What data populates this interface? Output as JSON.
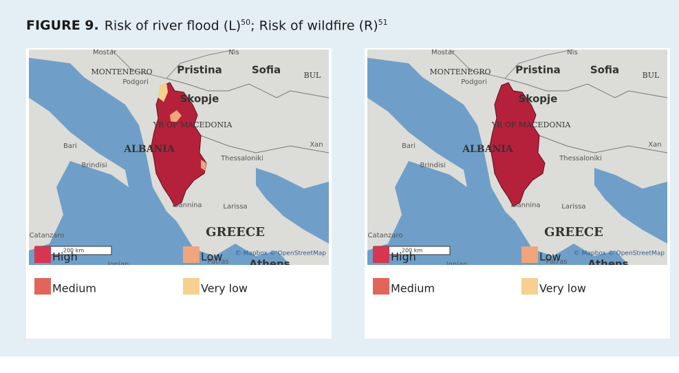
{
  "figure": {
    "label": "FIGURE 9.",
    "title": "Risk of river flood (L)",
    "title_ref": "50",
    "title_2": "; Risk of wildfire (R)",
    "title_2_ref": "51"
  },
  "panels": [
    {
      "map_labels": [
        "Mostar",
        "Nis",
        "MONTENEGRO",
        "Pristina",
        "Sofia",
        "BUL",
        "Podgori",
        "Skopje",
        "YR OF MACEDONIA",
        "Bari",
        "ALBANIA",
        "Brindisi",
        "Xan",
        "Thessaloniki",
        "Ioannina",
        "Larissa",
        "GREECE",
        "Catanzaro",
        "Patras",
        "Athens",
        "Ionian"
      ],
      "scale": "200 km",
      "attribution": "© Mapbox © OpenStreetMap",
      "legend": [
        {
          "label": "High",
          "color": "#d6364f"
        },
        {
          "label": "Medium",
          "color": "#e2655a"
        },
        {
          "label": "Low",
          "color": "#f0a57a"
        },
        {
          "label": "Very low",
          "color": "#f7cf8e"
        }
      ]
    },
    {
      "map_labels": [
        "Mostar",
        "Nis",
        "MONTENEGRO",
        "Pristina",
        "Sofia",
        "BUL",
        "Podgori",
        "Skopje",
        "YR OF MACEDONIA",
        "Bari",
        "ALBANIA",
        "Brindisi",
        "Xan",
        "Thessaloniki",
        "Ioannina",
        "Larissa",
        "GREECE",
        "Catanzaro",
        "Patras",
        "Athens",
        "Ionian"
      ],
      "scale": "200 km",
      "attribution": "© Mapbox © OpenStreetMap",
      "legend": [
        {
          "label": "High",
          "color": "#d6364f"
        },
        {
          "label": "Medium",
          "color": "#e2655a"
        },
        {
          "label": "Low",
          "color": "#f0a57a"
        },
        {
          "label": "Very low",
          "color": "#f7cf8e"
        }
      ]
    }
  ]
}
